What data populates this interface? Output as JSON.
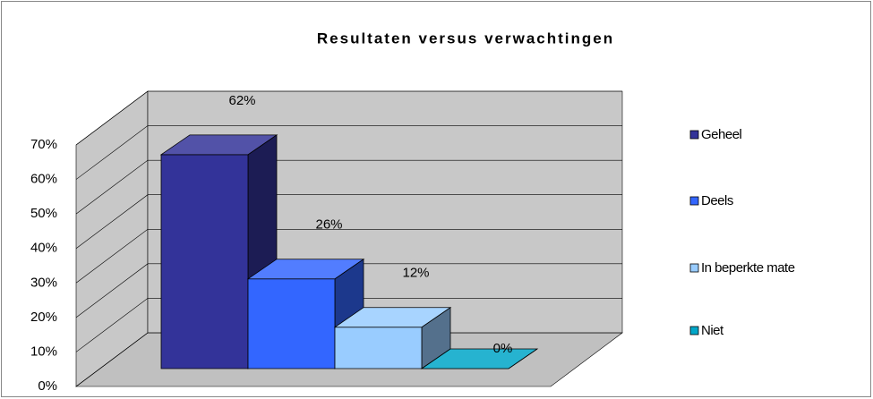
{
  "chart_data": {
    "type": "bar3d",
    "title": "Resultaten versus verwachtingen",
    "categories": [
      "Geheel",
      "Deels",
      "In beperkte mate",
      "Niet"
    ],
    "values": [
      62,
      26,
      12,
      0
    ],
    "value_labels": [
      "62%",
      "26%",
      "12%",
      "0%"
    ],
    "colors": [
      "#333399",
      "#3366ff",
      "#99ccff",
      "#00a6c8"
    ],
    "ylim": [
      0,
      70
    ],
    "yticks": [
      {
        "value": 0,
        "label": "0%"
      },
      {
        "value": 10,
        "label": "10%"
      },
      {
        "value": 20,
        "label": "20%"
      },
      {
        "value": 30,
        "label": "30%"
      },
      {
        "value": 40,
        "label": "40%"
      },
      {
        "value": 50,
        "label": "50%"
      },
      {
        "value": 60,
        "label": "60%"
      },
      {
        "value": 70,
        "label": "70%"
      }
    ],
    "grid": true,
    "legend": "right"
  }
}
